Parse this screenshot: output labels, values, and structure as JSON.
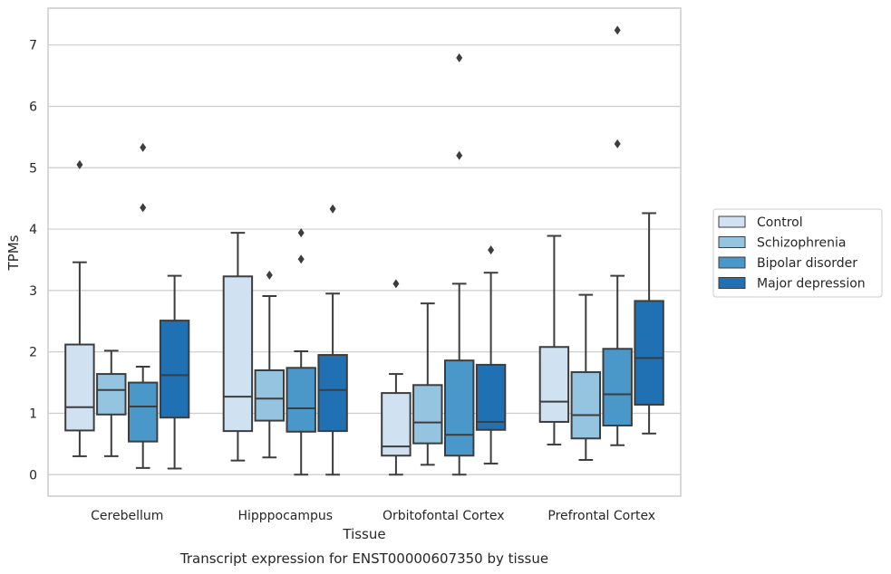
{
  "chart_data": {
    "type": "box",
    "title": "",
    "caption": "Transcript expression for ENST00000607350 by tissue",
    "xlabel": "Tissue",
    "ylabel": "TPMs",
    "ylim": [
      -0.35,
      7.6
    ],
    "yticks": [
      0,
      1,
      2,
      3,
      4,
      5,
      6,
      7
    ],
    "grid": "horizontal",
    "legend_position": "right",
    "categories": [
      "Cerebellum",
      "Hipppocampus",
      "Orbitofontal Cortex",
      "Prefrontal Cortex"
    ],
    "series": [
      {
        "name": "Control",
        "color": "#d0e1f2",
        "boxes": [
          {
            "whislo": 0.3,
            "q1": 0.72,
            "med": 1.1,
            "q3": 2.12,
            "whishi": 3.46,
            "fliers": [
              5.05
            ]
          },
          {
            "whislo": 0.23,
            "q1": 0.71,
            "med": 1.27,
            "q3": 3.23,
            "whishi": 3.94,
            "fliers": []
          },
          {
            "whislo": 0.0,
            "q1": 0.31,
            "med": 0.46,
            "q3": 1.33,
            "whishi": 1.64,
            "fliers": [
              3.11
            ]
          },
          {
            "whislo": 0.49,
            "q1": 0.86,
            "med": 1.19,
            "q3": 2.08,
            "whishi": 3.89,
            "fliers": []
          }
        ]
      },
      {
        "name": "Schizophrenia",
        "color": "#94c4df",
        "boxes": [
          {
            "whislo": 0.3,
            "q1": 0.98,
            "med": 1.38,
            "q3": 1.64,
            "whishi": 2.02,
            "fliers": []
          },
          {
            "whislo": 0.28,
            "q1": 0.88,
            "med": 1.24,
            "q3": 1.7,
            "whishi": 2.91,
            "fliers": [
              3.25
            ]
          },
          {
            "whislo": 0.16,
            "q1": 0.51,
            "med": 0.85,
            "q3": 1.46,
            "whishi": 2.79,
            "fliers": []
          },
          {
            "whislo": 0.24,
            "q1": 0.59,
            "med": 0.97,
            "q3": 1.67,
            "whishi": 2.93,
            "fliers": []
          }
        ]
      },
      {
        "name": "Bipolar disorder",
        "color": "#4a98c9",
        "boxes": [
          {
            "whislo": 0.11,
            "q1": 0.54,
            "med": 1.11,
            "q3": 1.5,
            "whishi": 1.76,
            "fliers": [
              4.35,
              5.33
            ]
          },
          {
            "whislo": 0.0,
            "q1": 0.7,
            "med": 1.08,
            "q3": 1.74,
            "whishi": 2.01,
            "fliers": [
              3.51,
              3.94
            ]
          },
          {
            "whislo": 0.0,
            "q1": 0.31,
            "med": 0.65,
            "q3": 1.86,
            "whishi": 3.11,
            "fliers": [
              5.2,
              6.79
            ]
          },
          {
            "whislo": 0.48,
            "q1": 0.8,
            "med": 1.31,
            "q3": 2.05,
            "whishi": 3.24,
            "fliers": [
              5.39,
              7.24
            ]
          }
        ]
      },
      {
        "name": "Major depression",
        "color": "#2070b4",
        "boxes": [
          {
            "whislo": 0.1,
            "q1": 0.93,
            "med": 1.62,
            "q3": 2.51,
            "whishi": 3.24,
            "fliers": []
          },
          {
            "whislo": 0.0,
            "q1": 0.71,
            "med": 1.38,
            "q3": 1.95,
            "whishi": 2.95,
            "fliers": [
              4.33
            ]
          },
          {
            "whislo": 0.18,
            "q1": 0.73,
            "med": 0.86,
            "q3": 1.79,
            "whishi": 3.29,
            "fliers": [
              3.66
            ]
          },
          {
            "whislo": 0.67,
            "q1": 1.14,
            "med": 1.9,
            "q3": 2.83,
            "whishi": 4.26,
            "fliers": []
          }
        ]
      }
    ]
  },
  "colors": {
    "background": "#ffffff",
    "grid": "#cccccc",
    "spine": "#cccccc",
    "box_edge": "#3d3d3d",
    "text": "#262626"
  }
}
